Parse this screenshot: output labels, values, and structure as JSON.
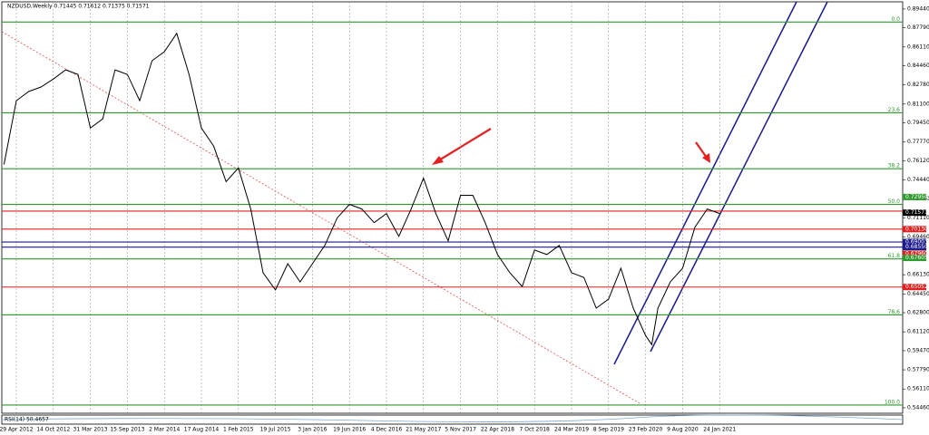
{
  "chart_data": {
    "type": "line",
    "title": "NZDUSD,Weekly 0.71445 0.71612 0.71375 0.71571",
    "indicator": "RSI(14) 50.4657",
    "series": [
      {
        "name": "NZDUSD",
        "color": "#000000",
        "x": [
          -8,
          0,
          8,
          16,
          24,
          32,
          40,
          48,
          56,
          64,
          72,
          80,
          88,
          96,
          104,
          112,
          120,
          128,
          136,
          144,
          152,
          160,
          168,
          176,
          184,
          192,
          200,
          208,
          216,
          224,
          232,
          240,
          248,
          256,
          264,
          272,
          280,
          288,
          296,
          304,
          312,
          320,
          328,
          336,
          344,
          352,
          360,
          368,
          376,
          384,
          392,
          400,
          408,
          412,
          416,
          424,
          432,
          440,
          448,
          456
        ],
        "values": [
          0.758,
          0.814,
          0.822,
          0.826,
          0.833,
          0.841,
          0.837,
          0.79,
          0.798,
          0.841,
          0.837,
          0.814,
          0.849,
          0.857,
          0.873,
          0.837,
          0.79,
          0.774,
          0.743,
          0.755,
          0.719,
          0.663,
          0.648,
          0.671,
          0.655,
          0.671,
          0.687,
          0.711,
          0.723,
          0.719,
          0.707,
          0.715,
          0.695,
          0.719,
          0.746,
          0.715,
          0.691,
          0.731,
          0.731,
          0.707,
          0.679,
          0.663,
          0.651,
          0.683,
          0.679,
          0.687,
          0.663,
          0.659,
          0.632,
          0.64,
          0.667,
          0.632,
          0.608,
          0.6,
          0.632,
          0.655,
          0.667,
          0.703,
          0.719,
          0.715
        ]
      }
    ],
    "xlim": [
      -9.4,
      574.7
    ],
    "xticks": [
      {
        "value": 0,
        "label": "29 Apr 2012"
      },
      {
        "value": 24,
        "label": "14 Oct 2012"
      },
      {
        "value": 48,
        "label": "31 Mar 2013"
      },
      {
        "value": 72,
        "label": "15 Sep 2013"
      },
      {
        "value": 96,
        "label": "2 Mar 2014"
      },
      {
        "value": 120,
        "label": "17 Aug 2014"
      },
      {
        "value": 144,
        "label": "1 Feb 2015"
      },
      {
        "value": 168,
        "label": "19 Jul 2015"
      },
      {
        "value": 192,
        "label": "3 Jan 2016"
      },
      {
        "value": 216,
        "label": "19 Jun 2016"
      },
      {
        "value": 240,
        "label": "4 Dec 2016"
      },
      {
        "value": 264,
        "label": "21 May 2017"
      },
      {
        "value": 288,
        "label": "5 Nov 2017"
      },
      {
        "value": 312,
        "label": "22 Apr 2018"
      },
      {
        "value": 336,
        "label": "7 Oct 2018"
      },
      {
        "value": 360,
        "label": "24 Mar 2019"
      },
      {
        "value": 384,
        "label": "8 Sep 2019"
      },
      {
        "value": 408,
        "label": "23 Feb 2020"
      },
      {
        "value": 432,
        "label": "9 Aug 2020"
      },
      {
        "value": 456,
        "label": "24 Jan 2021"
      }
    ],
    "ylim": [
      0.5398,
      0.9007
    ],
    "yticks": [
      {
        "value": 0.8944,
        "label": "0.89440"
      },
      {
        "value": 0.8779,
        "label": "0.87790"
      },
      {
        "value": 0.8611,
        "label": "0.86110"
      },
      {
        "value": 0.8446,
        "label": "0.84460"
      },
      {
        "value": 0.8278,
        "label": "0.82780"
      },
      {
        "value": 0.811,
        "label": "0.81100"
      },
      {
        "value": 0.7945,
        "label": "0.79450"
      },
      {
        "value": 0.7777,
        "label": "0.77770"
      },
      {
        "value": 0.7612,
        "label": "0.76120"
      },
      {
        "value": 0.7444,
        "label": "0.74440"
      },
      {
        "value": 0.7279,
        "label": "0.72790"
      },
      {
        "value": 0.7111,
        "label": "0.71110"
      },
      {
        "value": 0.6946,
        "label": "0.69460"
      },
      {
        "value": 0.6613,
        "label": "0.66130"
      },
      {
        "value": 0.6445,
        "label": "0.64450"
      },
      {
        "value": 0.628,
        "label": "0.62800"
      },
      {
        "value": 0.6112,
        "label": "0.61120"
      },
      {
        "value": 0.5947,
        "label": "0.59470"
      },
      {
        "value": 0.5779,
        "label": "0.57790"
      },
      {
        "value": 0.5611,
        "label": "0.56110"
      },
      {
        "value": 0.5446,
        "label": "0.54460"
      }
    ],
    "levels": [
      {
        "value": 0.883,
        "color": "#2e9a2e",
        "label": "0.0"
      },
      {
        "value": 0.8034,
        "color": "#2e9a2e",
        "label": "23.6"
      },
      {
        "value": 0.7543,
        "color": "#2e9a2e",
        "label": "38.2"
      },
      {
        "value": 0.723,
        "color": "#2e9a2e",
        "label": "50.0"
      },
      {
        "value": 0.6752,
        "color": "#2e9a2e",
        "label": "61.8"
      },
      {
        "value": 0.6261,
        "color": "#2e9a2e",
        "label": "78.6"
      },
      {
        "value": 0.547,
        "color": "#2e9a2e",
        "label": "100.0"
      },
      {
        "value": 0.7171,
        "color": "#e02020"
      },
      {
        "value": 0.7013,
        "color": "#e02020"
      },
      {
        "value": 0.6505,
        "color": "#e02020"
      },
      {
        "value": 0.69,
        "color": "#1a1a8c"
      },
      {
        "value": 0.6855,
        "color": "#1a1a8c"
      }
    ],
    "price_tags": [
      {
        "value": 0.7295,
        "label": "0.72950",
        "color": "#2e9a2e"
      },
      {
        "value": 0.71571,
        "label": "0.71571",
        "color": "#000000"
      },
      {
        "value": 0.7013,
        "label": "0.70130",
        "color": "#e02020"
      },
      {
        "value": 0.69003,
        "label": "0.69003",
        "color": "#1a1a8c"
      },
      {
        "value": 0.6855,
        "label": "0.68550",
        "color": "#1a1a8c"
      },
      {
        "value": 0.6796,
        "label": "0.67960",
        "color": "#e02020"
      },
      {
        "value": 0.67605,
        "label": "0.67605",
        "color": "#2e9a2e"
      },
      {
        "value": 0.65052,
        "label": "0.65052",
        "color": "#e02020"
      }
    ]
  }
}
